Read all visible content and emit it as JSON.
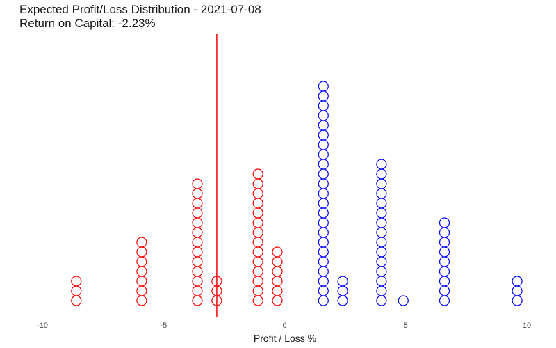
{
  "chart_data": {
    "type": "dotplot",
    "title": "Expected Profit/Loss Distribution - 2021-07-08",
    "subtitle": "Return on Capital: -2.23%",
    "xlabel": "Profit / Loss %",
    "ylabel": "",
    "xlim": [
      -10,
      10
    ],
    "x_ticks": [
      -10,
      -5,
      0,
      5,
      10
    ],
    "grid": false,
    "legend": "none",
    "reference_line": {
      "x": -2.8,
      "color": "#ff0000"
    },
    "colors": {
      "loss": "#ff0000",
      "profit": "#0000ff"
    },
    "points": [
      {
        "x": -8.6,
        "count": 3,
        "group": "loss"
      },
      {
        "x": -5.9,
        "count": 7,
        "group": "loss"
      },
      {
        "x": -3.6,
        "count": 13,
        "group": "loss"
      },
      {
        "x": -2.8,
        "count": 3,
        "group": "loss"
      },
      {
        "x": -1.1,
        "count": 14,
        "group": "loss"
      },
      {
        "x": -0.3,
        "count": 6,
        "group": "loss"
      },
      {
        "x": 1.6,
        "count": 23,
        "group": "profit"
      },
      {
        "x": 2.4,
        "count": 3,
        "group": "profit"
      },
      {
        "x": 4.0,
        "count": 15,
        "group": "profit"
      },
      {
        "x": 4.9,
        "count": 1,
        "group": "profit"
      },
      {
        "x": 6.6,
        "count": 9,
        "group": "profit"
      },
      {
        "x": 9.6,
        "count": 3,
        "group": "profit"
      }
    ]
  }
}
